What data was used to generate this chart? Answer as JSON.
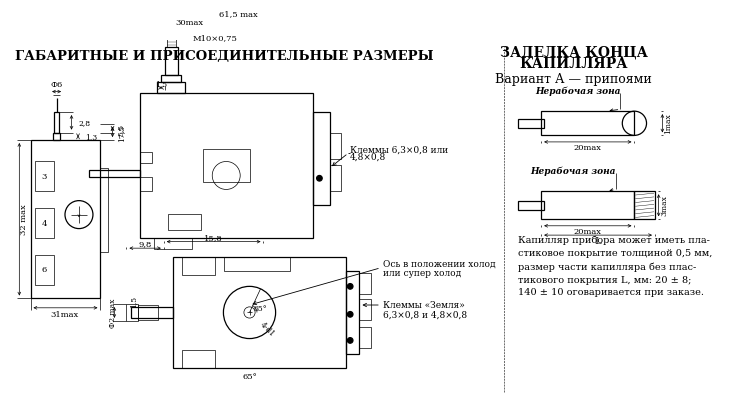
{
  "title_left": "ГАБАРИТНЫЕ И ПРИСОЕДИНИТЕЛЬНЫЕ РАЗМЕРЫ",
  "title_right1": "ЗАДЕЛКА КОНЦА",
  "title_right2": "КАПИЛЛЯРА",
  "subtitle_right": "Вариант А — припоями",
  "label_nerаb1": "Нерабочая зона",
  "label_nerаb2": "Нерабочая зона",
  "label_klemy1_1": "Клеммы 6,3×0,8 или",
  "label_klemy1_2": "4,8×0,8",
  "label_klemy2_1": "Клеммы «Земля»",
  "label_klemy2_2": "6,3×0,8 и 4,8×0,8",
  "label_os1": "Ось в положении холод",
  "label_os2": "или супер холод",
  "dim_61_5": "61,5 max",
  "dim_30max": "30max",
  "dim_M10": "M10×0,75",
  "dim_1_5": "1,5",
  "dim_Phi6": "Ф6",
  "dim_2_8": "2,8",
  "dim_1_3": "1,3",
  "dim_17_5": "17,5",
  "dim_5_5": "5,5",
  "dim_32max": "32 max",
  "dim_31max": "31max",
  "dim_6": "6",
  "dim_4": "4",
  "dim_3": "3",
  "dim_9_8": "9,8",
  "dim_15_8": "15,8",
  "dim_Phi2max": "Ф2 max",
  "dim_1_5b": "1,5",
  "dim_65deg": "65°",
  "dim_4_d1": "4-d1",
  "dim_1max": "1max",
  "dim_3max": "3max",
  "dim_20max": "20max",
  "dim_L": "L",
  "desc_text": "Капилляр прибора может иметь пла-\nстиковое покрытие толщиной 0,5 мм,\nразмер части капилляра без плас-\nтикового покрытия L, мм: 20 ± 8;\n140 ± 10 оговаривается при заказе.",
  "bg_color": "#ffffff",
  "lw_main": 0.9,
  "lw_thin": 0.5,
  "lw_dim": 0.5
}
